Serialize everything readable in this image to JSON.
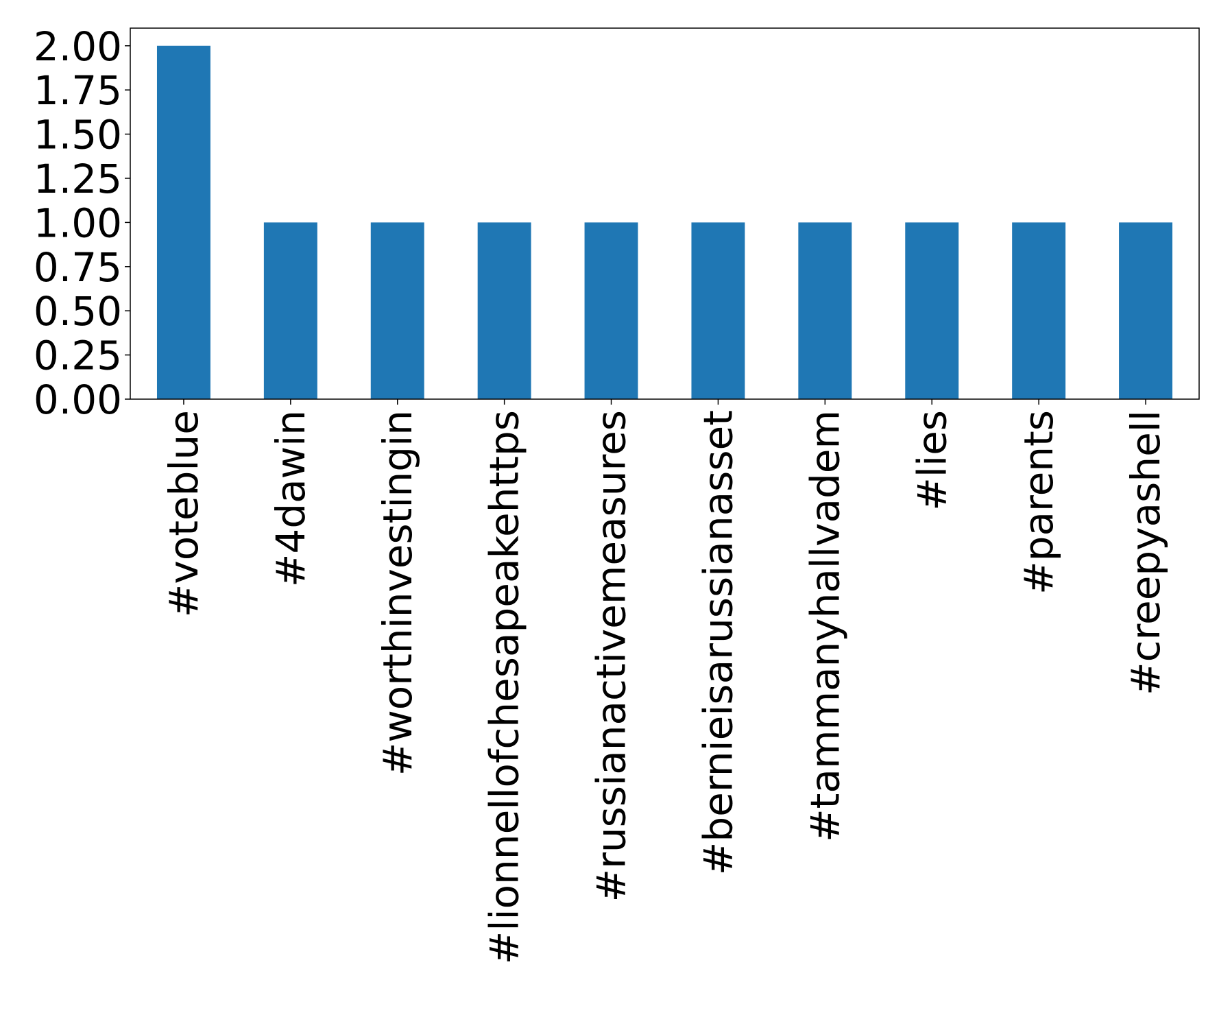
{
  "chart_data": {
    "type": "bar",
    "title": "",
    "xlabel": "",
    "ylabel": "",
    "categories": [
      "#voteblue",
      "#4dawin",
      "#worthinvestingin",
      "#lionnellofchesapeakehttps",
      "#russianactivemeasures",
      "#bernieisarussianasset",
      "#tammanyhallvadem",
      "#lies",
      "#parents",
      "#creepyashell"
    ],
    "values": [
      2,
      1,
      1,
      1,
      1,
      1,
      1,
      1,
      1,
      1
    ],
    "ylim": [
      0,
      2.1
    ],
    "yticks": [
      "0.00",
      "0.25",
      "0.50",
      "0.75",
      "1.00",
      "1.25",
      "1.50",
      "1.75",
      "2.00"
    ],
    "bar_color": "#1f77b4",
    "grid": false,
    "legend": "none"
  }
}
